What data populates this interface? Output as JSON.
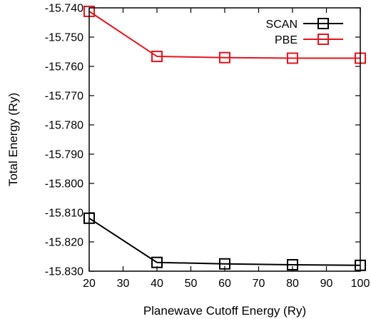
{
  "chart_data": {
    "type": "line",
    "xlabel": "Planewave Cutoff Energy (Ry)",
    "ylabel": "Total Energy (Ry)",
    "xlim": [
      20,
      100
    ],
    "ylim": [
      -15.83,
      -15.74
    ],
    "xticks": [
      20,
      30,
      40,
      50,
      60,
      70,
      80,
      90,
      100
    ],
    "yticks": [
      -15.83,
      -15.82,
      -15.81,
      -15.8,
      -15.79,
      -15.78,
      -15.77,
      -15.76,
      -15.75,
      -15.74
    ],
    "ytick_labels": [
      "-15.830",
      "-15.820",
      "-15.810",
      "-15.800",
      "-15.790",
      "-15.780",
      "-15.770",
      "-15.760",
      "-15.750",
      "-15.740"
    ],
    "grid": false,
    "legend_position": "top-right",
    "series": [
      {
        "name": "SCAN",
        "color": "#000000",
        "marker": "open-square",
        "x": [
          20,
          40,
          60,
          80,
          100
        ],
        "y": [
          -15.8119,
          -15.827,
          -15.8275,
          -15.8278,
          -15.828
        ]
      },
      {
        "name": "PBE",
        "color": "#e8141c",
        "marker": "open-square",
        "x": [
          20,
          40,
          60,
          80,
          100
        ],
        "y": [
          -15.7412,
          -15.7566,
          -15.757,
          -15.7572,
          -15.7572
        ]
      }
    ]
  }
}
